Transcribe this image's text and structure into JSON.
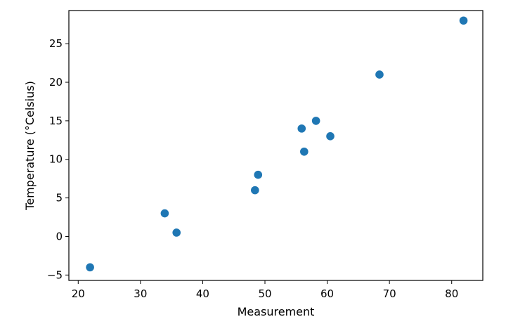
{
  "chart_data": {
    "type": "scatter",
    "xlabel": "Measurement",
    "ylabel": "Temperature (°Celsius)",
    "xlim": [
      18.5,
      85
    ],
    "ylim": [
      -5.7,
      29.3
    ],
    "xticks": [
      20,
      30,
      40,
      50,
      60,
      70,
      80
    ],
    "yticks": [
      -5,
      0,
      5,
      10,
      15,
      20,
      25
    ],
    "grid": false,
    "marker_color": "#1f77b4",
    "points": [
      {
        "x": 21.9,
        "y": -4.0
      },
      {
        "x": 33.9,
        "y": 3.0
      },
      {
        "x": 35.8,
        "y": 0.5
      },
      {
        "x": 48.4,
        "y": 6.0
      },
      {
        "x": 48.9,
        "y": 8.0
      },
      {
        "x": 55.9,
        "y": 14.0
      },
      {
        "x": 56.3,
        "y": 11.0
      },
      {
        "x": 58.2,
        "y": 15.0
      },
      {
        "x": 60.5,
        "y": 13.0
      },
      {
        "x": 68.4,
        "y": 21.0
      },
      {
        "x": 81.9,
        "y": 28.0
      }
    ]
  }
}
